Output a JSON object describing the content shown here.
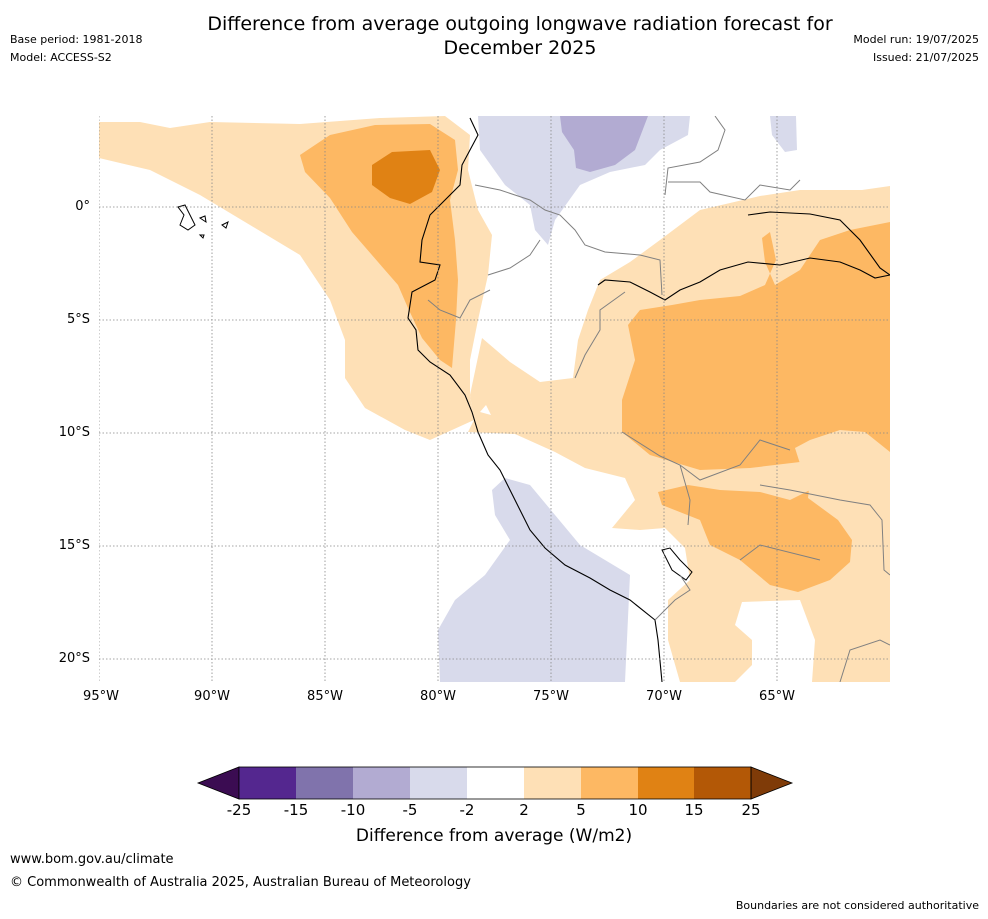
{
  "header": {
    "title_line1": "Difference from average outgoing longwave radiation forecast for",
    "title_line2": "December 2025",
    "base_period": "Base period: 1981-2018",
    "model": "Model: ACCESS-S2",
    "model_run": "Model run: 19/07/2025",
    "issued": "Issued: 21/07/2025"
  },
  "map": {
    "lat_labels": [
      "0°",
      "5°S",
      "10°S",
      "15°S",
      "20°S"
    ],
    "lon_labels": [
      "95°W",
      "90°W",
      "85°W",
      "80°W",
      "75°W",
      "70°W",
      "65°W"
    ],
    "colors": {
      "lt_minus25": "#3b0c52",
      "m25_m15": "#54278f",
      "m15_m10": "#8073ac",
      "m10_m5": "#b2abd2",
      "m5_m2": "#d8daeb",
      "m2_p2": "#ffffff",
      "p2_p5": "#fee0b6",
      "p5_p10": "#fdb863",
      "p10_p15": "#e08214",
      "p15_p25": "#b35806",
      "gt_25": "#7f3b08"
    }
  },
  "colorbar": {
    "ticks": [
      "-25",
      "-15",
      "-10",
      "-5",
      "-2",
      "2",
      "5",
      "10",
      "15",
      "25"
    ],
    "title": "Difference from average (W/m2)"
  },
  "footer": {
    "url": "www.bom.gov.au/climate",
    "copyright": "© Commonwealth of Australia 2025, Australian Bureau of Meteorology",
    "note": "Boundaries are not considered authoritative"
  }
}
